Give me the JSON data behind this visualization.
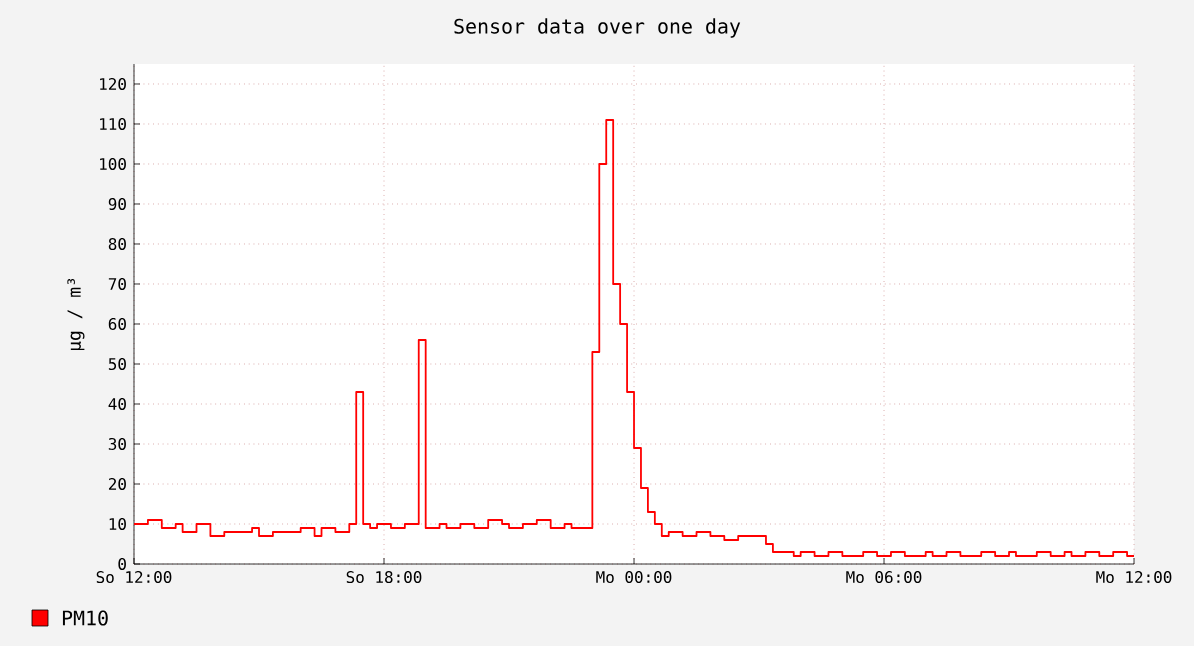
{
  "chart_data": {
    "type": "step",
    "title": "Sensor data over one day",
    "ylabel": "µg / m³",
    "categories": [
      "So 12:00",
      null,
      null,
      null,
      null,
      null,
      null,
      null,
      null,
      null,
      null,
      null,
      null,
      null,
      null,
      null,
      null,
      null,
      null,
      null,
      null,
      null,
      null,
      null,
      null,
      null,
      null,
      null,
      null,
      null,
      null,
      null,
      null,
      null,
      null,
      null,
      "So 18:00",
      null,
      null,
      null,
      null,
      null,
      null,
      null,
      null,
      null,
      null,
      null,
      null,
      null,
      null,
      null,
      null,
      null,
      null,
      null,
      null,
      null,
      null,
      null,
      null,
      null,
      null,
      null,
      null,
      null,
      null,
      null,
      null,
      null,
      null,
      null,
      "Mo 00:00",
      null,
      null,
      null,
      null,
      null,
      null,
      null,
      null,
      null,
      null,
      null,
      null,
      null,
      null,
      null,
      null,
      null,
      null,
      null,
      null,
      null,
      null,
      null,
      null,
      null,
      null,
      null,
      null,
      null,
      null,
      null,
      null,
      null,
      null,
      null,
      "Mo 06:00",
      null,
      null,
      null,
      null,
      null,
      null,
      null,
      null,
      null,
      null,
      null,
      null,
      null,
      null,
      null,
      null,
      null,
      null,
      null,
      null,
      null,
      null,
      null,
      null,
      null,
      null,
      null,
      null,
      null,
      null,
      null,
      null,
      null,
      null,
      null,
      "Mo 12:00"
    ],
    "ylim": [
      0,
      125
    ],
    "yticks": [
      0,
      10,
      20,
      30,
      40,
      50,
      60,
      70,
      80,
      90,
      100,
      110,
      120
    ],
    "grid": true,
    "legend": "bottom left",
    "series": [
      {
        "name": "PM10",
        "color": "#ff0000",
        "values": [
          10,
          10,
          11,
          11,
          9,
          9,
          10,
          8,
          8,
          10,
          10,
          7,
          7,
          8,
          8,
          8,
          8,
          9,
          7,
          7,
          8,
          8,
          8,
          8,
          9,
          9,
          7,
          9,
          9,
          8,
          8,
          10,
          43,
          10,
          9,
          10,
          10,
          9,
          9,
          10,
          10,
          56,
          9,
          9,
          10,
          9,
          9,
          10,
          10,
          9,
          9,
          11,
          11,
          10,
          9,
          9,
          10,
          10,
          11,
          11,
          9,
          9,
          10,
          9,
          9,
          9,
          53,
          100,
          111,
          70,
          60,
          43,
          29,
          19,
          13,
          10,
          7,
          8,
          8,
          7,
          7,
          8,
          8,
          7,
          7,
          6,
          6,
          7,
          7,
          7,
          7,
          5,
          3,
          3,
          3,
          2,
          3,
          3,
          2,
          2,
          3,
          3,
          2,
          2,
          2,
          3,
          3,
          2,
          2,
          3,
          3,
          2,
          2,
          2,
          3,
          2,
          2,
          3,
          3,
          2,
          2,
          2,
          3,
          3,
          2,
          2,
          3,
          2,
          2,
          2,
          3,
          3,
          2,
          2,
          3,
          2,
          2,
          3,
          3,
          2,
          2,
          3,
          3,
          2,
          2
        ]
      }
    ]
  }
}
